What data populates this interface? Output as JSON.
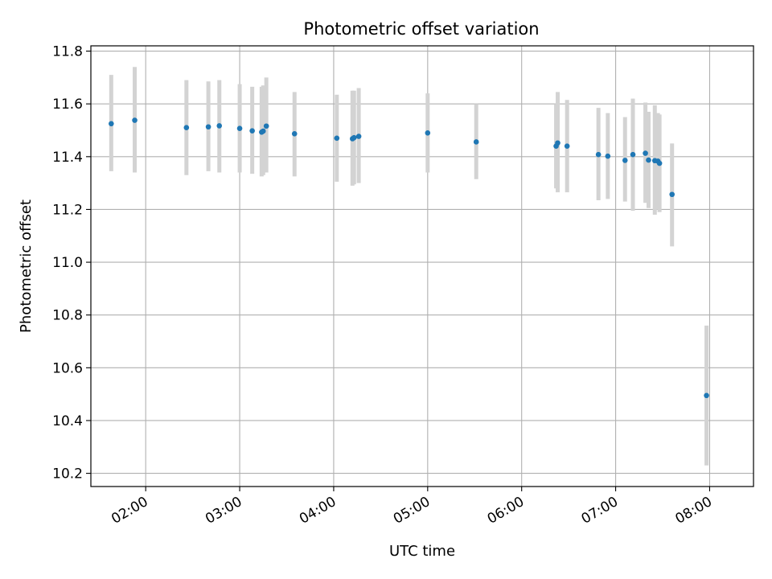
{
  "chart_data": {
    "type": "scatter",
    "title": "Photometric offset variation",
    "xlabel": "UTC time",
    "ylabel": "Photometric offset",
    "x_axis_kind": "time",
    "xlim": [
      "01:25",
      "08:28"
    ],
    "ylim": [
      10.15,
      11.82
    ],
    "x_ticks": [
      "02:00",
      "03:00",
      "04:00",
      "05:00",
      "06:00",
      "07:00",
      "08:00"
    ],
    "y_ticks": [
      10.2,
      10.4,
      10.6,
      10.8,
      11.0,
      11.2,
      11.4,
      11.6,
      11.8
    ],
    "y_tick_labels": [
      "10.2",
      "10.4",
      "10.6",
      "10.8",
      "11.0",
      "11.2",
      "11.4",
      "11.6",
      "11.8"
    ],
    "grid": true,
    "point_color": "#1f77b4",
    "errorbar_color": "#d3d3d3",
    "points": [
      {
        "t": "01:38",
        "y": 11.525,
        "lo": 11.345,
        "hi": 11.71
      },
      {
        "t": "01:53",
        "y": 11.538,
        "lo": 11.34,
        "hi": 11.74
      },
      {
        "t": "02:26",
        "y": 11.51,
        "lo": 11.33,
        "hi": 11.69
      },
      {
        "t": "02:40",
        "y": 11.513,
        "lo": 11.345,
        "hi": 11.685
      },
      {
        "t": "02:47",
        "y": 11.517,
        "lo": 11.34,
        "hi": 11.69
      },
      {
        "t": "03:00",
        "y": 11.507,
        "lo": 11.34,
        "hi": 11.675
      },
      {
        "t": "03:08",
        "y": 11.498,
        "lo": 11.335,
        "hi": 11.665
      },
      {
        "t": "03:14",
        "y": 11.493,
        "lo": 11.325,
        "hi": 11.665
      },
      {
        "t": "03:15",
        "y": 11.497,
        "lo": 11.33,
        "hi": 11.67
      },
      {
        "t": "03:17",
        "y": 11.516,
        "lo": 11.34,
        "hi": 11.7
      },
      {
        "t": "03:35",
        "y": 11.487,
        "lo": 11.325,
        "hi": 11.645
      },
      {
        "t": "04:02",
        "y": 11.47,
        "lo": 11.305,
        "hi": 11.635
      },
      {
        "t": "04:12",
        "y": 11.468,
        "lo": 11.29,
        "hi": 11.65
      },
      {
        "t": "04:13",
        "y": 11.472,
        "lo": 11.295,
        "hi": 11.65
      },
      {
        "t": "04:16",
        "y": 11.477,
        "lo": 11.3,
        "hi": 11.66
      },
      {
        "t": "05:00",
        "y": 11.49,
        "lo": 11.34,
        "hi": 11.64
      },
      {
        "t": "05:31",
        "y": 11.456,
        "lo": 11.315,
        "hi": 11.6
      },
      {
        "t": "06:22",
        "y": 11.44,
        "lo": 11.28,
        "hi": 11.6
      },
      {
        "t": "06:23",
        "y": 11.452,
        "lo": 11.265,
        "hi": 11.645
      },
      {
        "t": "06:29",
        "y": 11.44,
        "lo": 11.265,
        "hi": 11.615
      },
      {
        "t": "06:49",
        "y": 11.408,
        "lo": 11.235,
        "hi": 11.585
      },
      {
        "t": "06:55",
        "y": 11.402,
        "lo": 11.24,
        "hi": 11.565
      },
      {
        "t": "07:06",
        "y": 11.386,
        "lo": 11.23,
        "hi": 11.55
      },
      {
        "t": "07:11",
        "y": 11.408,
        "lo": 11.195,
        "hi": 11.62
      },
      {
        "t": "07:19",
        "y": 11.413,
        "lo": 11.225,
        "hi": 11.605
      },
      {
        "t": "07:21",
        "y": 11.387,
        "lo": 11.205,
        "hi": 11.57
      },
      {
        "t": "07:25",
        "y": 11.385,
        "lo": 11.18,
        "hi": 11.595
      },
      {
        "t": "07:27",
        "y": 11.383,
        "lo": 11.2,
        "hi": 11.565
      },
      {
        "t": "07:28",
        "y": 11.375,
        "lo": 11.19,
        "hi": 11.56
      },
      {
        "t": "07:36",
        "y": 11.257,
        "lo": 11.06,
        "hi": 11.45
      },
      {
        "t": "07:58",
        "y": 10.495,
        "lo": 10.23,
        "hi": 10.76
      }
    ]
  }
}
